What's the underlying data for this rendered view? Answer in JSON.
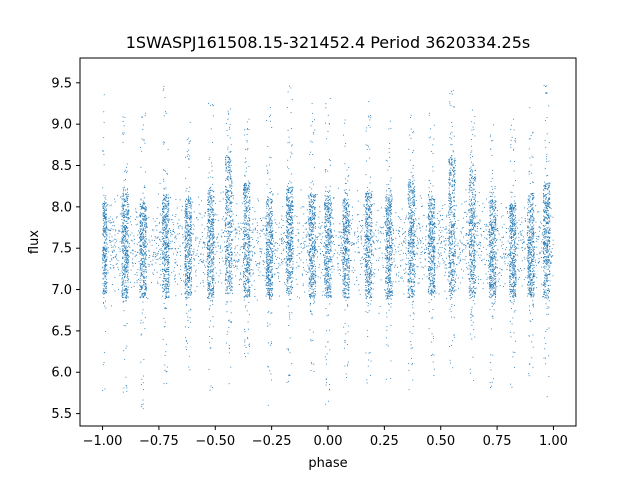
{
  "chart_data": {
    "type": "scatter",
    "title": "1SWASPJ161508.15-321452.4 Period 3620334.25s",
    "xlabel": "phase",
    "ylabel": "flux",
    "xlim": [
      -1.1,
      1.1
    ],
    "ylim": [
      5.35,
      9.8
    ],
    "x_ticks": [
      "−1.00",
      "−0.75",
      "−0.50",
      "−0.25",
      "0.00",
      "0.25",
      "0.50",
      "0.75",
      "1.00"
    ],
    "x_tick_values": [
      -1.0,
      -0.75,
      -0.5,
      -0.25,
      0.0,
      0.25,
      0.5,
      0.75,
      1.0
    ],
    "y_ticks": [
      "5.5",
      "6.0",
      "6.5",
      "7.0",
      "7.5",
      "8.0",
      "8.5",
      "9.0",
      "9.5"
    ],
    "y_tick_values": [
      5.5,
      6.0,
      6.5,
      7.0,
      7.5,
      8.0,
      8.5,
      9.0,
      9.5
    ],
    "grid": false,
    "marker_color": "#1f77b4",
    "series": [
      {
        "center_flux": 7.55,
        "core_spread": 0.55,
        "x_range": [
          -1.0,
          1.0
        ],
        "phase_clusters": [
          {
            "phase": -0.995,
            "width": 0.03,
            "hi": 8.05,
            "lo": 6.95,
            "max": 9.5,
            "min": 5.55
          },
          {
            "phase": -0.9,
            "width": 0.03,
            "hi": 8.2,
            "lo": 6.9,
            "max": 9.3,
            "min": 5.75
          },
          {
            "phase": -0.82,
            "width": 0.03,
            "hi": 8.05,
            "lo": 6.9,
            "max": 9.15,
            "min": 5.55
          },
          {
            "phase": -0.72,
            "width": 0.03,
            "hi": 8.15,
            "lo": 6.9,
            "max": 9.55,
            "min": 5.8
          },
          {
            "phase": -0.62,
            "width": 0.03,
            "hi": 8.1,
            "lo": 6.9,
            "max": 9.1,
            "min": 5.95
          },
          {
            "phase": -0.52,
            "width": 0.03,
            "hi": 8.2,
            "lo": 6.9,
            "max": 9.3,
            "min": 5.7
          },
          {
            "phase": -0.44,
            "width": 0.03,
            "hi": 8.6,
            "lo": 6.95,
            "max": 9.2,
            "min": 5.85
          },
          {
            "phase": -0.36,
            "width": 0.03,
            "hi": 8.3,
            "lo": 6.9,
            "max": 9.1,
            "min": 5.95
          },
          {
            "phase": -0.26,
            "width": 0.03,
            "hi": 8.1,
            "lo": 6.9,
            "max": 9.3,
            "min": 5.6
          },
          {
            "phase": -0.17,
            "width": 0.03,
            "hi": 8.25,
            "lo": 6.95,
            "max": 9.5,
            "min": 5.85
          },
          {
            "phase": -0.07,
            "width": 0.03,
            "hi": 8.15,
            "lo": 6.9,
            "max": 9.25,
            "min": 5.95
          },
          {
            "phase": 0.0,
            "width": 0.03,
            "hi": 8.15,
            "lo": 6.9,
            "max": 9.55,
            "min": 5.5
          },
          {
            "phase": 0.08,
            "width": 0.03,
            "hi": 8.1,
            "lo": 6.9,
            "max": 9.15,
            "min": 5.9
          },
          {
            "phase": 0.18,
            "width": 0.03,
            "hi": 8.2,
            "lo": 6.9,
            "max": 9.35,
            "min": 5.8
          },
          {
            "phase": 0.27,
            "width": 0.03,
            "hi": 8.15,
            "lo": 6.9,
            "max": 9.05,
            "min": 5.9
          },
          {
            "phase": 0.37,
            "width": 0.03,
            "hi": 8.3,
            "lo": 6.9,
            "max": 9.2,
            "min": 5.75
          },
          {
            "phase": 0.46,
            "width": 0.03,
            "hi": 8.1,
            "lo": 6.95,
            "max": 9.15,
            "min": 5.95
          },
          {
            "phase": 0.55,
            "width": 0.03,
            "hi": 8.6,
            "lo": 6.95,
            "max": 9.45,
            "min": 5.85
          },
          {
            "phase": 0.64,
            "width": 0.03,
            "hi": 8.45,
            "lo": 6.9,
            "max": 9.2,
            "min": 5.9
          },
          {
            "phase": 0.73,
            "width": 0.03,
            "hi": 8.1,
            "lo": 6.9,
            "max": 9.1,
            "min": 5.75
          },
          {
            "phase": 0.82,
            "width": 0.03,
            "hi": 8.05,
            "lo": 6.9,
            "max": 9.3,
            "min": 5.8
          },
          {
            "phase": 0.9,
            "width": 0.03,
            "hi": 8.15,
            "lo": 6.9,
            "max": 9.2,
            "min": 5.8
          },
          {
            "phase": 0.97,
            "width": 0.03,
            "hi": 8.3,
            "lo": 6.9,
            "max": 9.5,
            "min": 5.7
          }
        ]
      }
    ]
  }
}
